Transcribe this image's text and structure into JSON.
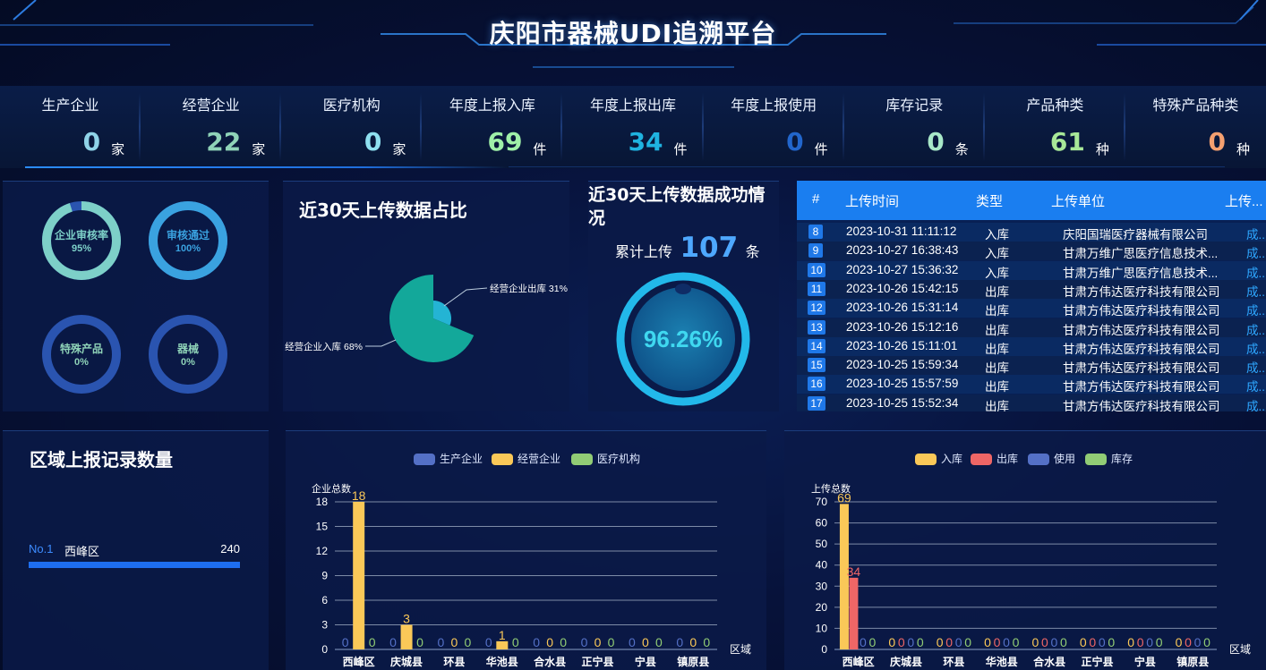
{
  "header": {
    "title": "庆阳市器械UDI追溯平台"
  },
  "stats": [
    {
      "label": "生产企业",
      "value": "0",
      "unit": "家",
      "color": "#8fd3e8"
    },
    {
      "label": "经营企业",
      "value": "22",
      "unit": "家",
      "color": "#8fd3b8"
    },
    {
      "label": "医疗机构",
      "value": "0",
      "unit": "家",
      "color": "#8fe0f0"
    },
    {
      "label": "年度上报入库",
      "value": "69",
      "unit": "件",
      "color": "#9ff0a8"
    },
    {
      "label": "年度上报出库",
      "value": "34",
      "unit": "件",
      "color": "#1fb3e0"
    },
    {
      "label": "年度上报使用",
      "value": "0",
      "unit": "件",
      "color": "#2266cc"
    },
    {
      "label": "库存记录",
      "value": "0",
      "unit": "条",
      "color": "#a8e8c8"
    },
    {
      "label": "产品种类",
      "value": "61",
      "unit": "种",
      "color": "#a8e898"
    },
    {
      "label": "特殊产品种类",
      "value": "0",
      "unit": "种",
      "color": "#f4a070"
    }
  ],
  "rings": [
    {
      "label": "企业审核率",
      "value_text": "95%",
      "value": 0.95,
      "color": "#7dd0c8"
    },
    {
      "label": "审核通过",
      "value_text": "100%",
      "value": 1.0,
      "color": "#3aa2e0"
    },
    {
      "label": "特殊产品",
      "value_text": "0%",
      "value": 0,
      "color": "#2a54b0"
    },
    {
      "label": "器械",
      "value_text": "0%",
      "value": 0,
      "color": "#2a54b0"
    }
  ],
  "pie_panel": {
    "title": "近30天上传数据占比",
    "slices": [
      {
        "label": "经营企业出库 31%",
        "value": 31,
        "color": "#24b4d4"
      },
      {
        "label": "经营企业入库 68%",
        "value": 68,
        "color": "#13a89a"
      }
    ]
  },
  "success_panel": {
    "title": "近30天上传数据成功情况",
    "total_prefix": "累计上传",
    "total": "107",
    "total_unit": "条",
    "rate_text": "96.26%",
    "rate": 0.9626
  },
  "table": {
    "headers": [
      "#",
      "上传时间",
      "类型",
      "上传单位",
      "上传..."
    ],
    "rows": [
      {
        "no": "8",
        "time": "2023-10-31 11:11:12",
        "type": "入库",
        "unit": "庆阳国瑞医疗器械有限公司",
        "status": "成..."
      },
      {
        "no": "9",
        "time": "2023-10-27 16:38:43",
        "type": "入库",
        "unit": "甘肃万维广思医疗信息技术...",
        "status": "成..."
      },
      {
        "no": "10",
        "time": "2023-10-27 15:36:32",
        "type": "入库",
        "unit": "甘肃万维广思医疗信息技术...",
        "status": "成..."
      },
      {
        "no": "11",
        "time": "2023-10-26 15:42:15",
        "type": "出库",
        "unit": "甘肃方伟达医疗科技有限公司",
        "status": "成..."
      },
      {
        "no": "12",
        "time": "2023-10-26 15:31:14",
        "type": "出库",
        "unit": "甘肃方伟达医疗科技有限公司",
        "status": "成..."
      },
      {
        "no": "13",
        "time": "2023-10-26 15:12:16",
        "type": "出库",
        "unit": "甘肃方伟达医疗科技有限公司",
        "status": "成..."
      },
      {
        "no": "14",
        "time": "2023-10-26 15:11:01",
        "type": "出库",
        "unit": "甘肃方伟达医疗科技有限公司",
        "status": "成..."
      },
      {
        "no": "15",
        "time": "2023-10-25 15:59:34",
        "type": "出库",
        "unit": "甘肃方伟达医疗科技有限公司",
        "status": "成..."
      },
      {
        "no": "16",
        "time": "2023-10-25 15:57:59",
        "type": "出库",
        "unit": "甘肃方伟达医疗科技有限公司",
        "status": "成..."
      },
      {
        "no": "17",
        "time": "2023-10-25 15:52:34",
        "type": "出库",
        "unit": "甘肃方伟达医疗科技有限公司",
        "status": "成..."
      }
    ]
  },
  "region_panel": {
    "title": "区域上报记录数量",
    "items": [
      {
        "rank": "No.1",
        "name": "西峰区",
        "value": "240",
        "fraction": 1.0
      }
    ]
  },
  "chart_data": [
    {
      "type": "bar",
      "ylabel": "企业总数",
      "xlabel": "区域",
      "ylim": [
        0,
        18
      ],
      "yticks": [
        0,
        3,
        6,
        9,
        12,
        15,
        18
      ],
      "categories": [
        "西峰区",
        "庆城县",
        "环县",
        "华池县",
        "合水县",
        "正宁县",
        "宁县",
        "镇原县"
      ],
      "series": [
        {
          "name": "生产企业",
          "color": "#5470c6",
          "values": [
            0,
            0,
            0,
            0,
            0,
            0,
            0,
            0
          ]
        },
        {
          "name": "经营企业",
          "color": "#fac858",
          "values": [
            18,
            3,
            0,
            1,
            0,
            0,
            0,
            0
          ]
        },
        {
          "name": "医疗机构",
          "color": "#91cc75",
          "values": [
            0,
            0,
            0,
            0,
            0,
            0,
            0,
            0
          ]
        }
      ],
      "legend": "top-center",
      "grid": true
    },
    {
      "type": "bar",
      "ylabel": "上传总数",
      "xlabel": "区域",
      "ylim": [
        0,
        70
      ],
      "yticks": [
        0,
        10,
        20,
        30,
        40,
        50,
        60,
        70
      ],
      "categories": [
        "西峰区",
        "庆城县",
        "环县",
        "华池县",
        "合水县",
        "正宁县",
        "宁县",
        "镇原县"
      ],
      "series": [
        {
          "name": "入库",
          "color": "#fac858",
          "values": [
            69,
            0,
            0,
            0,
            0,
            0,
            0,
            0
          ]
        },
        {
          "name": "出库",
          "color": "#ee6666",
          "values": [
            34,
            0,
            0,
            0,
            0,
            0,
            0,
            0
          ]
        },
        {
          "name": "使用",
          "color": "#5470c6",
          "values": [
            0,
            0,
            0,
            0,
            0,
            0,
            0,
            0
          ]
        },
        {
          "name": "库存",
          "color": "#91cc75",
          "values": [
            0,
            0,
            0,
            0,
            0,
            0,
            0,
            0
          ]
        }
      ],
      "legend": "top-center",
      "grid": true
    }
  ]
}
